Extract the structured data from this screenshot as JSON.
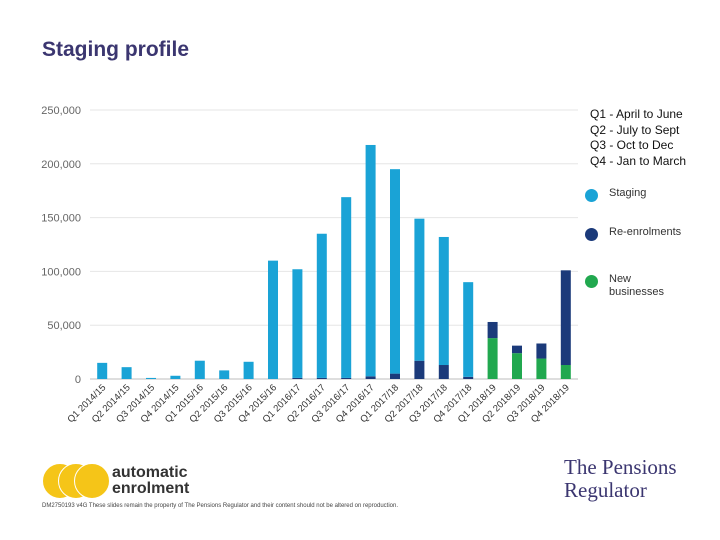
{
  "page": {
    "title": "Staging profile"
  },
  "chart_data": {
    "type": "bar",
    "stacked": true,
    "title": "",
    "xlabel": "",
    "ylabel": "",
    "ylim": [
      0,
      250000
    ],
    "yticks": [
      0,
      50000,
      100000,
      150000,
      200000,
      250000
    ],
    "ytick_labels": [
      "0",
      "50,000",
      "100,000",
      "150,000",
      "200,000",
      "250,000"
    ],
    "categories": [
      "Q1 2014/15",
      "Q2 2014/15",
      "Q3 2014/15",
      "Q4 2014/15",
      "Q1 2015/16",
      "Q2 2015/16",
      "Q3 2015/16",
      "Q4 2015/16",
      "Q1 2016/17",
      "Q2 2016/17",
      "Q3 2016/17",
      "Q4 2016/17",
      "Q1 2017/18",
      "Q2 2017/18",
      "Q3 2017/18",
      "Q4 2017/18",
      "Q1 2018/19",
      "Q2 2018/19",
      "Q3 2018/19",
      "Q4 2018/19"
    ],
    "series": [
      {
        "name": "New businesses",
        "color": "#21a84f",
        "values": [
          0,
          0,
          0,
          0,
          0,
          0,
          0,
          0,
          0,
          0,
          0,
          0,
          0,
          0,
          0,
          0,
          38000,
          24000,
          19000,
          13000
        ]
      },
      {
        "name": "Re-enrolments",
        "color": "#1b3a7a",
        "values": [
          0,
          0,
          0,
          0,
          0,
          0,
          0,
          0,
          1000,
          1000,
          1000,
          2500,
          5000,
          17000,
          13000,
          2000,
          15000,
          7000,
          14000,
          88000
        ]
      },
      {
        "name": "Staging",
        "color": "#1aa3d6",
        "values": [
          15000,
          11000,
          1000,
          3000,
          17000,
          8000,
          16000,
          110000,
          101000,
          134000,
          168000,
          215000,
          190000,
          132000,
          119000,
          88000,
          0,
          0,
          0,
          0
        ]
      }
    ]
  },
  "quarters_key": [
    "Q1 - April to June",
    "Q2 - July to Sept",
    "Q3 - Oct to Dec",
    "Q4 - Jan to March"
  ],
  "legend": [
    {
      "label": "Staging",
      "color": "#1aa3d6"
    },
    {
      "label": "Re-enrolments",
      "color": "#1b3a7a"
    },
    {
      "label": "New businesses",
      "color": "#21a84f"
    }
  ],
  "logos": {
    "automatic_enrolment": [
      "automatic",
      "enrolment"
    ],
    "pensions_regulator": [
      "The Pensions",
      "Regulator"
    ]
  },
  "footer": "DM2750193 v4G These slides remain the property of The Pensions Regulator and their content should not be altered on reproduction."
}
